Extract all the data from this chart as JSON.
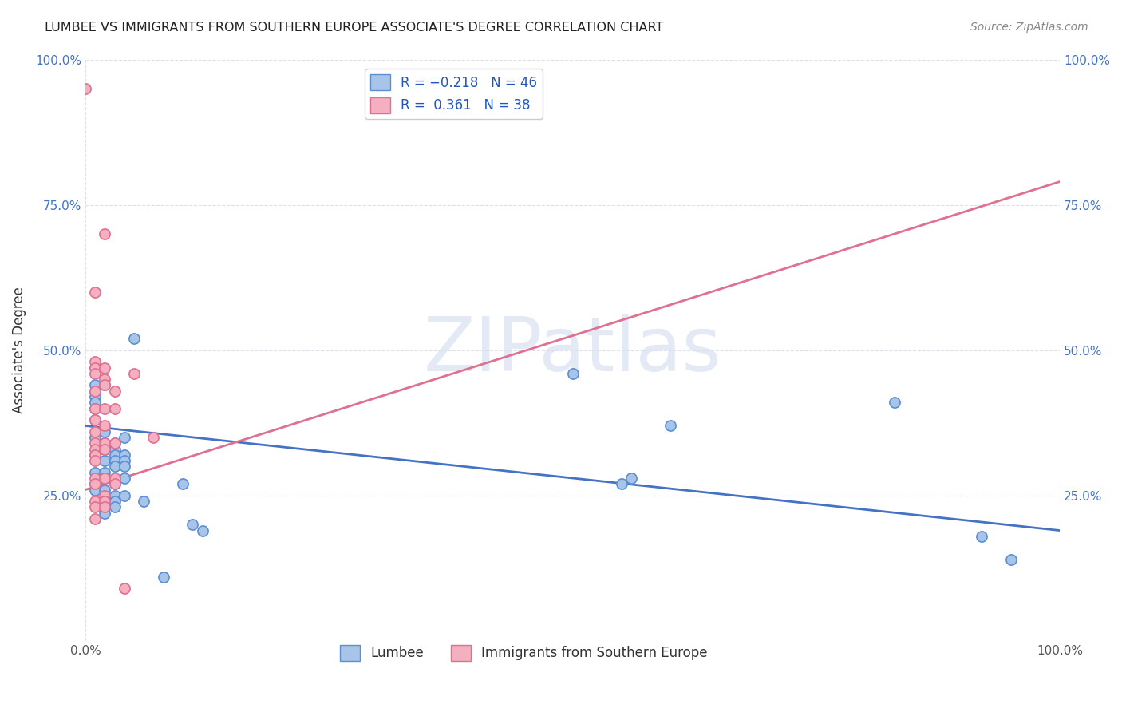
{
  "title": "LUMBEE VS IMMIGRANTS FROM SOUTHERN EUROPE ASSOCIATE'S DEGREE CORRELATION CHART",
  "source": "Source: ZipAtlas.com",
  "ylabel": "Associate's Degree",
  "watermark": "ZIPatlas",
  "xlim": [
    0,
    1
  ],
  "ylim": [
    0,
    1
  ],
  "lumbee_color": "#a8c4e8",
  "lumbee_edge_color": "#5b8fd4",
  "southern_europe_color": "#f4afc0",
  "southern_europe_edge_color": "#e07090",
  "lumbee_line_color": "#4472c4",
  "southern_europe_line_color": "#e07090",
  "background_color": "#ffffff",
  "grid_color": "#dde0ea",
  "lumbee_scatter": [
    [
      0.01,
      0.43
    ],
    [
      0.01,
      0.44
    ],
    [
      0.01,
      0.42
    ],
    [
      0.01,
      0.41
    ],
    [
      0.01,
      0.4
    ],
    [
      0.01,
      0.38
    ],
    [
      0.01,
      0.35
    ],
    [
      0.01,
      0.32
    ],
    [
      0.01,
      0.29
    ],
    [
      0.01,
      0.27
    ],
    [
      0.01,
      0.47
    ],
    [
      0.01,
      0.26
    ],
    [
      0.02,
      0.44
    ],
    [
      0.02,
      0.36
    ],
    [
      0.02,
      0.34
    ],
    [
      0.02,
      0.33
    ],
    [
      0.02,
      0.31
    ],
    [
      0.02,
      0.29
    ],
    [
      0.02,
      0.28
    ],
    [
      0.02,
      0.26
    ],
    [
      0.02,
      0.23
    ],
    [
      0.02,
      0.22
    ],
    [
      0.03,
      0.34
    ],
    [
      0.03,
      0.33
    ],
    [
      0.03,
      0.32
    ],
    [
      0.03,
      0.31
    ],
    [
      0.03,
      0.3
    ],
    [
      0.03,
      0.27
    ],
    [
      0.03,
      0.25
    ],
    [
      0.03,
      0.24
    ],
    [
      0.03,
      0.23
    ],
    [
      0.04,
      0.35
    ],
    [
      0.04,
      0.32
    ],
    [
      0.04,
      0.31
    ],
    [
      0.04,
      0.3
    ],
    [
      0.04,
      0.28
    ],
    [
      0.04,
      0.25
    ],
    [
      0.05,
      0.52
    ],
    [
      0.06,
      0.24
    ],
    [
      0.08,
      0.11
    ],
    [
      0.1,
      0.27
    ],
    [
      0.11,
      0.2
    ],
    [
      0.12,
      0.19
    ],
    [
      0.5,
      0.46
    ],
    [
      0.55,
      0.27
    ],
    [
      0.56,
      0.28
    ],
    [
      0.6,
      0.37
    ],
    [
      0.83,
      0.41
    ],
    [
      0.92,
      0.18
    ],
    [
      0.95,
      0.14
    ]
  ],
  "southern_europe_scatter": [
    [
      0.0,
      0.95
    ],
    [
      0.01,
      0.6
    ],
    [
      0.01,
      0.48
    ],
    [
      0.01,
      0.47
    ],
    [
      0.01,
      0.46
    ],
    [
      0.01,
      0.43
    ],
    [
      0.01,
      0.4
    ],
    [
      0.01,
      0.38
    ],
    [
      0.01,
      0.36
    ],
    [
      0.01,
      0.34
    ],
    [
      0.01,
      0.33
    ],
    [
      0.01,
      0.32
    ],
    [
      0.01,
      0.31
    ],
    [
      0.01,
      0.28
    ],
    [
      0.01,
      0.27
    ],
    [
      0.01,
      0.24
    ],
    [
      0.01,
      0.23
    ],
    [
      0.01,
      0.21
    ],
    [
      0.02,
      0.7
    ],
    [
      0.02,
      0.47
    ],
    [
      0.02,
      0.45
    ],
    [
      0.02,
      0.44
    ],
    [
      0.02,
      0.4
    ],
    [
      0.02,
      0.37
    ],
    [
      0.02,
      0.34
    ],
    [
      0.02,
      0.33
    ],
    [
      0.02,
      0.28
    ],
    [
      0.02,
      0.25
    ],
    [
      0.02,
      0.24
    ],
    [
      0.02,
      0.23
    ],
    [
      0.03,
      0.43
    ],
    [
      0.03,
      0.4
    ],
    [
      0.03,
      0.34
    ],
    [
      0.03,
      0.28
    ],
    [
      0.03,
      0.27
    ],
    [
      0.04,
      0.09
    ],
    [
      0.05,
      0.46
    ],
    [
      0.07,
      0.35
    ]
  ],
  "lumbee_trendline": [
    [
      0.0,
      0.37
    ],
    [
      1.0,
      0.19
    ]
  ],
  "southern_europe_trendline": [
    [
      0.0,
      0.26
    ],
    [
      1.0,
      0.79
    ]
  ]
}
